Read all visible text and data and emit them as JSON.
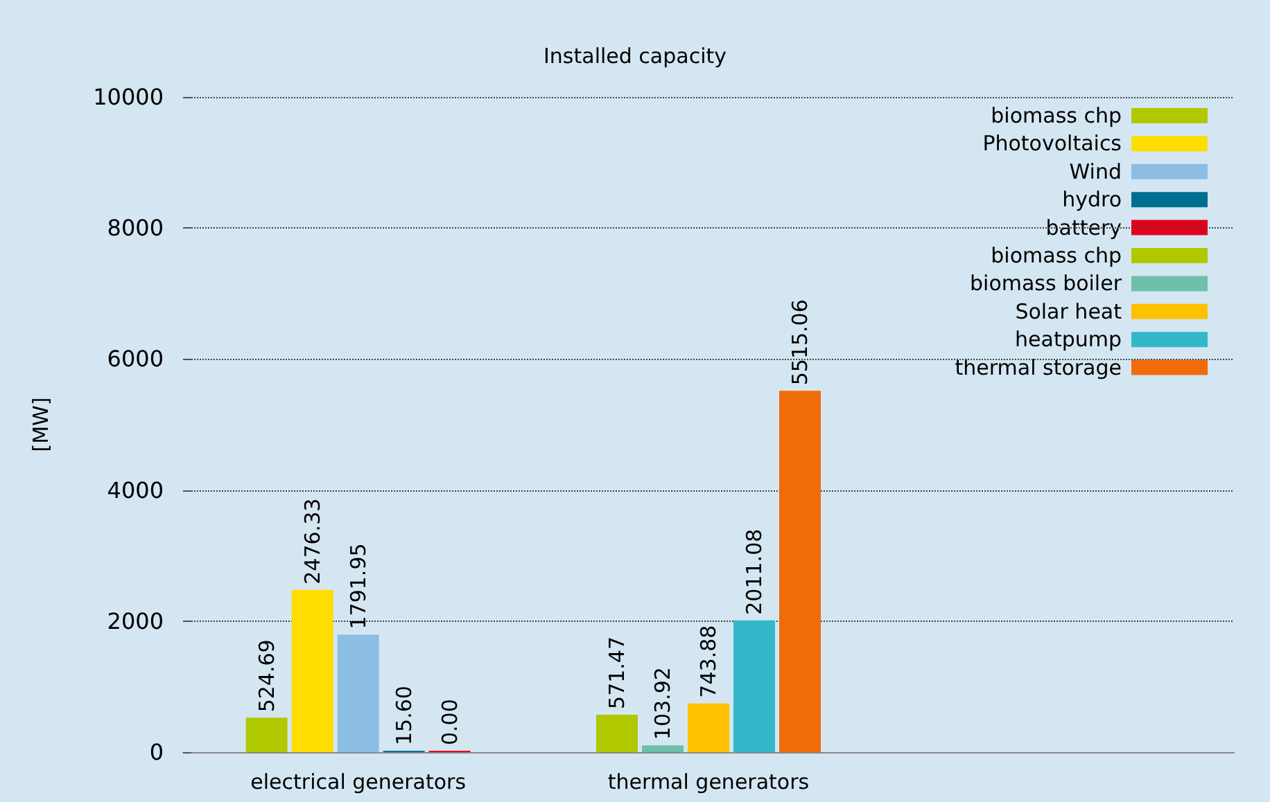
{
  "chart_data": {
    "type": "bar",
    "title": "Installed capacity",
    "ylabel": "[MW]",
    "categories": [
      "electrical generators",
      "thermal generators",
      null
    ],
    "ylim": [
      0,
      10000
    ],
    "yticks": [
      0,
      2000,
      4000,
      6000,
      8000,
      10000
    ],
    "grid": "y",
    "legend": "top right",
    "series": [
      {
        "name": "biomass chp",
        "color": "#afc800",
        "values": [
          524.69,
          null,
          null
        ],
        "value_labels": [
          "524.69",
          null,
          null
        ]
      },
      {
        "name": "Photovoltaics",
        "color": "#ffdd00",
        "values": [
          2476.33,
          null,
          null
        ],
        "value_labels": [
          "2476.33",
          null,
          null
        ]
      },
      {
        "name": "Wind",
        "color": "#8cbde3",
        "values": [
          1791.95,
          null,
          null
        ],
        "value_labels": [
          "1791.95",
          null,
          null
        ]
      },
      {
        "name": "hydro",
        "color": "#006e91",
        "values": [
          15.6,
          null,
          null
        ],
        "value_labels": [
          "15.60",
          null,
          null
        ]
      },
      {
        "name": "battery",
        "color": "#e2001a",
        "values": [
          0,
          null,
          null
        ],
        "value_labels": [
          "0.00",
          null,
          null
        ]
      },
      {
        "name": "biomass chp",
        "color": "#afc800",
        "values": [
          null,
          571.47,
          null
        ],
        "value_labels": [
          null,
          "571.47",
          null
        ]
      },
      {
        "name": "biomass boiler",
        "color": "#6fbfaa",
        "values": [
          null,
          103.92,
          null
        ],
        "value_labels": [
          null,
          "103.92",
          null
        ]
      },
      {
        "name": "Solar heat",
        "color": "#ffc000",
        "values": [
          null,
          743.88,
          null
        ],
        "value_labels": [
          null,
          "743.88",
          null
        ]
      },
      {
        "name": "heatpump",
        "color": "#33b8c9",
        "values": [
          null,
          2011.08,
          null
        ],
        "value_labels": [
          null,
          "2011.08",
          null
        ]
      },
      {
        "name": "thermal storage",
        "color": "#f06c0a",
        "values": [
          null,
          5515.06,
          null
        ],
        "value_labels": [
          null,
          "5515.06",
          null
        ]
      }
    ]
  }
}
